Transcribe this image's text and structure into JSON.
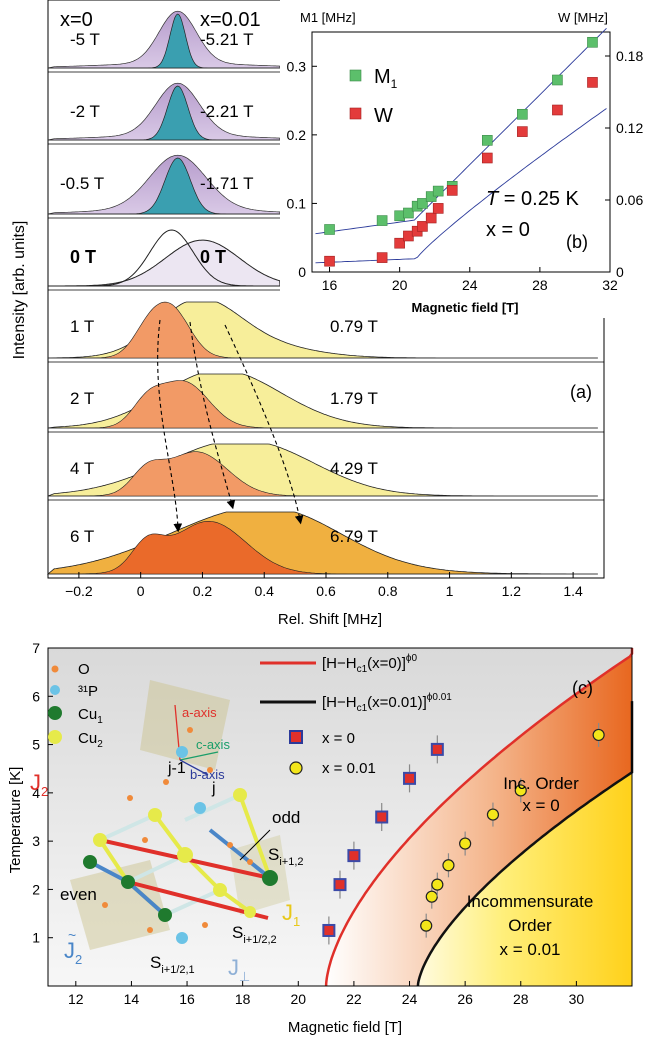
{
  "panel_a": {
    "tag": "(a)",
    "xlabel": "Rel. Shift [MHz]",
    "ylabel": "Intensity [arb. units]",
    "x_ticks": [
      "−0.2",
      "0",
      "0.2",
      "0.4",
      "0.6",
      "0.8",
      "1",
      "1.2",
      "1.4"
    ],
    "header_left": "x=0",
    "header_right": "x=0.01",
    "rows": [
      {
        "left": "-5 T",
        "right": "-5.21 T"
      },
      {
        "left": "-2 T",
        "right": "-2.21 T"
      },
      {
        "left": "-0.5 T",
        "right": "-1.71 T"
      },
      {
        "left": "0 T",
        "right": "0 T"
      },
      {
        "left": "1 T",
        "right": "0.79 T"
      },
      {
        "left": "2 T",
        "right": "1.79 T"
      },
      {
        "left": "4 T",
        "right": "4.29 T"
      },
      {
        "left": "6 T",
        "right": "6.79 T"
      }
    ]
  },
  "panel_b": {
    "tag": "(b)",
    "xlabel": "Magnetic field [T]",
    "ylabel_left": "M1 [MHz]",
    "ylabel_right": "W [MHz]",
    "x_ticks": [
      "16",
      "20",
      "24",
      "28",
      "32"
    ],
    "y_left_ticks": [
      "0",
      "0.1",
      "0.2",
      "0.3"
    ],
    "y_right_ticks": [
      "0",
      "0.06",
      "0.12",
      "0.18"
    ],
    "legend_m1": "M",
    "legend_m1_sub": "1",
    "legend_w": "W",
    "note_T": "T",
    "note_T_val": " = 0.25 K",
    "note_x": "x = 0"
  },
  "panel_c": {
    "tag": "(c)",
    "xlabel": "Magnetic field [T]",
    "ylabel": "Temperature [K]",
    "x_ticks": [
      "12",
      "14",
      "16",
      "18",
      "20",
      "22",
      "24",
      "26",
      "28",
      "30"
    ],
    "y_ticks": [
      "1",
      "2",
      "3",
      "4",
      "5",
      "6",
      "7"
    ],
    "legend_red": "[H−H",
    "legend_red_sub": "c1",
    "legend_red_rest": "(x=0)]",
    "legend_red_exp": "ϕ0",
    "legend_black": "[H−H",
    "legend_black_sub": "c1",
    "legend_black_rest": "(x=0.01)]",
    "legend_black_exp": "ϕ0.01",
    "legend_sq": "x = 0",
    "legend_circ": "x = 0.01",
    "inc_order_1": "Inc. Order",
    "inc_order_2": "x = 0",
    "incomm_1": "Incommensurate",
    "incomm_2": "Order",
    "incomm_3": "x = 0.01",
    "struct": {
      "O": "O",
      "P": "³¹P",
      "Cu1": "Cu",
      "Cu1_sub": "1",
      "Cu2": "Cu",
      "Cu2_sub": "2",
      "a_axis": "a-axis",
      "c_axis": "c-axis",
      "b_axis": "b-axis",
      "J2": "J",
      "J2_sub": "2",
      "J1": "J",
      "J1_sub": "1",
      "J2t": "J",
      "J2t_sub": "2",
      "Jperp": "J",
      "Jperp_sub": "⊥",
      "jm1": "j-1",
      "j": "j",
      "odd": "odd",
      "even": "even",
      "S_i12": "S",
      "S_i12_sub": "i+1,2",
      "S_i122": "S",
      "S_i122_sub": "i+1/2,2",
      "S_i121": "S",
      "S_i121_sub": "i+1/2,1"
    }
  },
  "chart_data": [
    {
      "type": "area",
      "panel": "(a)",
      "xlabel": "Rel. Shift [MHz]",
      "ylabel": "Intensity [arb. units]",
      "xlim": [
        -0.3,
        1.5
      ],
      "series": [
        {
          "name": "x=0",
          "fields": [
            "-5 T",
            "-2 T",
            "-0.5 T",
            "0 T",
            "1 T",
            "2 T",
            "4 T",
            "6 T"
          ]
        },
        {
          "name": "x=0.01",
          "fields": [
            "-5.21 T",
            "-2.21 T",
            "-1.71 T",
            "0 T",
            "0.79 T",
            "1.79 T",
            "4.29 T",
            "6.79 T"
          ]
        }
      ]
    },
    {
      "type": "scatter",
      "panel": "(b)",
      "xlabel": "Magnetic field [T]",
      "ylabel": "M1 [MHz]",
      "ylabel_right": "W [MHz]",
      "xlim": [
        15,
        32
      ],
      "ylim": [
        0,
        0.35
      ],
      "ylim_right": [
        0,
        0.2
      ],
      "series": [
        {
          "name": "M1",
          "color": "#5cbf6b",
          "x": [
            16,
            19,
            20,
            20.5,
            21,
            21.3,
            21.8,
            22.2,
            23,
            25,
            27,
            29,
            31
          ],
          "y": [
            0.062,
            0.075,
            0.082,
            0.086,
            0.096,
            0.1,
            0.11,
            0.118,
            0.125,
            0.192,
            0.23,
            0.28,
            0.335
          ]
        },
        {
          "name": "W",
          "color": "#e33b3b",
          "x": [
            16,
            19,
            20,
            20.5,
            21,
            21.3,
            21.8,
            22.2,
            23,
            25,
            27,
            29,
            31
          ],
          "y": [
            0.009,
            0.012,
            0.024,
            0.03,
            0.034,
            0.038,
            0.045,
            0.053,
            0.068,
            0.095,
            0.117,
            0.135,
            0.158
          ]
        }
      ]
    },
    {
      "type": "scatter",
      "panel": "(c)",
      "xlabel": "Magnetic field [T]",
      "ylabel": "Temperature [K]",
      "xlim": [
        11,
        32
      ],
      "ylim": [
        0,
        7
      ],
      "series": [
        {
          "name": "x = 0",
          "color": "#3b4aa8",
          "x": [
            21.1,
            21.5,
            22,
            23,
            24,
            25
          ],
          "y": [
            1.15,
            2.1,
            2.7,
            3.5,
            4.3,
            4.9
          ]
        },
        {
          "name": "x = 0.01",
          "color": "#f3e61a",
          "x": [
            24.6,
            24.8,
            25,
            25.4,
            26,
            27,
            28,
            30.8
          ],
          "y": [
            1.25,
            1.85,
            2.1,
            2.5,
            2.95,
            3.55,
            4.05,
            5.2
          ]
        }
      ]
    }
  ]
}
